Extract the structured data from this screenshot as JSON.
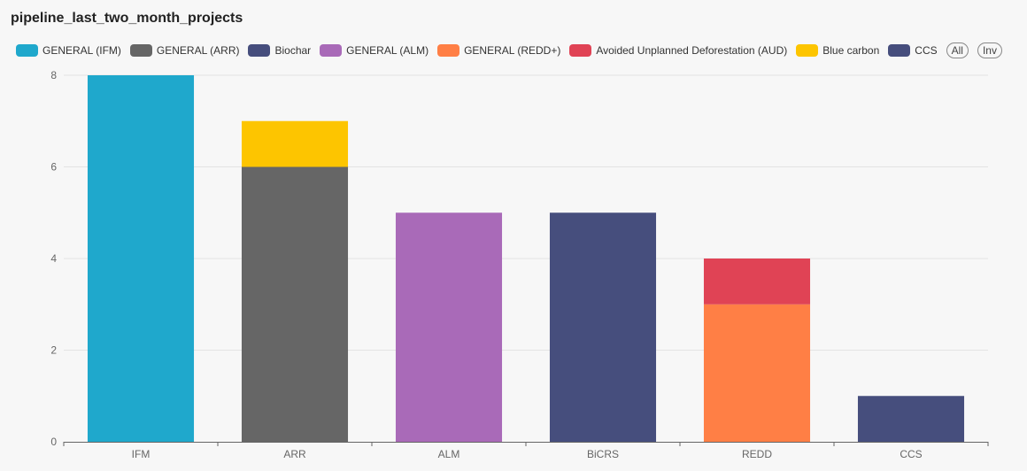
{
  "chart_data": {
    "type": "bar",
    "stacked": true,
    "title": "pipeline_last_two_month_projects",
    "categories": [
      "IFM",
      "ARR",
      "ALM",
      "BiCRS",
      "REDD",
      "CCS"
    ],
    "series": [
      {
        "name": "GENERAL (IFM)",
        "color": "#1fa8cc",
        "values": [
          8,
          0,
          0,
          0,
          0,
          0
        ]
      },
      {
        "name": "GENERAL (ARR)",
        "color": "#666666",
        "values": [
          0,
          6,
          0,
          0,
          0,
          0
        ]
      },
      {
        "name": "Biochar",
        "color": "#464e7d",
        "values": [
          0,
          0,
          0,
          5,
          0,
          0
        ]
      },
      {
        "name": "GENERAL (ALM)",
        "color": "#a96ab8",
        "values": [
          0,
          0,
          5,
          0,
          0,
          0
        ]
      },
      {
        "name": "GENERAL (REDD+)",
        "color": "#ff7f45",
        "values": [
          0,
          0,
          0,
          0,
          3,
          0
        ]
      },
      {
        "name": "Avoided Unplanned Deforestation (AUD)",
        "color": "#e04355",
        "values": [
          0,
          0,
          0,
          0,
          1,
          0
        ]
      },
      {
        "name": "Blue carbon",
        "color": "#fdc500",
        "values": [
          0,
          1,
          0,
          0,
          0,
          0
        ]
      },
      {
        "name": "CCS",
        "color": "#464e7d",
        "values": [
          0,
          0,
          0,
          0,
          0,
          1
        ]
      }
    ],
    "ylim": [
      0,
      8
    ],
    "yticks": [
      0,
      2,
      4,
      6,
      8
    ],
    "xlabel": "",
    "ylabel": "",
    "grid": true,
    "legend_position": "top-left"
  },
  "legend_controls": {
    "all_label": "All",
    "inv_label": "Inv"
  }
}
